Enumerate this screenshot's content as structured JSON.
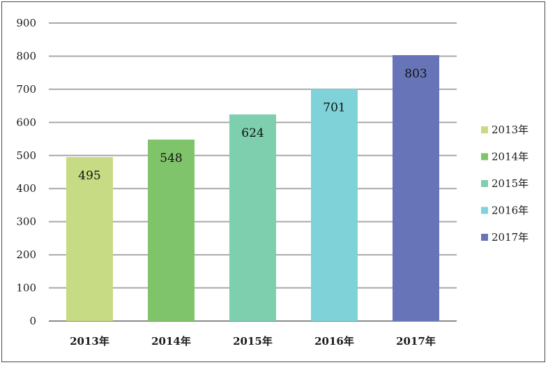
{
  "chart_data": {
    "type": "bar",
    "categories": [
      "2013年",
      "2014年",
      "2015年",
      "2016年",
      "2017年"
    ],
    "values": [
      495,
      548,
      624,
      701,
      803
    ],
    "colors": [
      "#c6db84",
      "#7fc46a",
      "#7dcfae",
      "#7fd3d8",
      "#6775b8"
    ],
    "ylim": [
      0,
      900
    ],
    "yticks": [
      "0",
      "100",
      "200",
      "300",
      "400",
      "500",
      "600",
      "700",
      "800",
      "900"
    ],
    "data_labels": [
      "495",
      "548",
      "624",
      "701",
      "803"
    ],
    "grid": true,
    "legend": {
      "placement": "right",
      "entries": [
        "2013年",
        "2014年",
        "2015年",
        "2016年",
        "2017年"
      ]
    }
  }
}
